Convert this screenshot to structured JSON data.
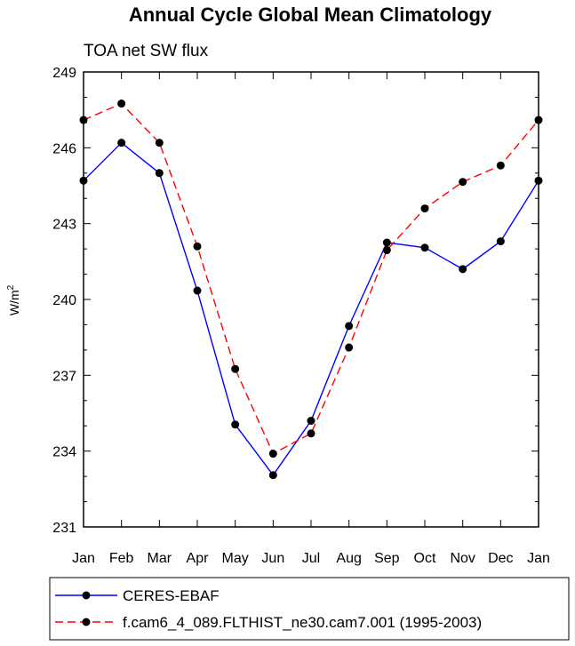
{
  "chart_data": {
    "type": "line",
    "title": "Annual Cycle Global Mean Climatology",
    "subtitle": "TOA net SW flux",
    "ylabel_main": "W/m",
    "ylabel_sup": "2",
    "xlabel": "",
    "categories": [
      "Jan",
      "Feb",
      "Mar",
      "Apr",
      "May",
      "Jun",
      "Jul",
      "Aug",
      "Sep",
      "Oct",
      "Nov",
      "Dec",
      "Jan"
    ],
    "ylim": [
      231,
      249
    ],
    "yticks": [
      231,
      234,
      237,
      240,
      243,
      246,
      249
    ],
    "series": [
      {
        "name": "CERES-EBAF",
        "color": "#0000ff",
        "dash": "solid",
        "values": [
          244.7,
          246.2,
          245.0,
          240.35,
          235.05,
          233.05,
          235.2,
          238.95,
          242.25,
          242.05,
          241.2,
          242.3,
          244.7
        ]
      },
      {
        "name": "f.cam6_4_089.FLTHIST_ne30.cam7.001 (1995-2003)",
        "color": "#ff0000",
        "dash": "dashed",
        "values": [
          247.1,
          247.75,
          246.2,
          242.1,
          237.25,
          233.9,
          234.7,
          238.1,
          241.95,
          243.6,
          244.65,
          245.3,
          247.1
        ]
      }
    ]
  }
}
